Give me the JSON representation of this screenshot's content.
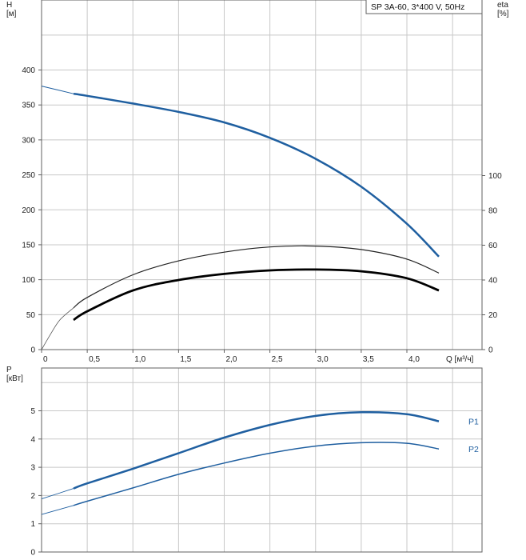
{
  "chart_data": [
    {
      "type": "line",
      "title": "SP 3A-60, 3*400 V, 50Hz",
      "xlabel": "Q [м³/ч]",
      "ylabel_left": "H\n[м]",
      "ylabel_right": "eta\n[%]",
      "xlim": [
        0,
        4.4
      ],
      "ylim_left": [
        0,
        400
      ],
      "ylim_right": [
        0,
        100
      ],
      "x_ticks": [
        "0",
        "0,5",
        "1,0",
        "1,5",
        "2,0",
        "2,5",
        "3,0",
        "3,5",
        "4,0"
      ],
      "y_ticks_left": [
        "0",
        "50",
        "100",
        "150",
        "200",
        "250",
        "300",
        "350",
        "400"
      ],
      "y_ticks_right": [
        "0",
        "20",
        "40",
        "60",
        "80",
        "100"
      ],
      "grid": true,
      "series": [
        {
          "axis": "left",
          "color": "#1f5fa0",
          "x": [
            0,
            0.35,
            0.5,
            1.0,
            1.5,
            2.0,
            2.5,
            3.0,
            3.5,
            4.0,
            4.35
          ],
          "y": [
            377,
            366,
            363,
            352,
            340,
            325,
            303,
            273,
            233,
            180,
            133
          ]
        },
        {
          "axis": "right",
          "color": "#222222",
          "x": [
            0,
            0.1,
            0.2,
            0.35,
            0.5,
            1.0,
            1.5,
            2.0,
            2.5,
            3.0,
            3.5,
            4.0,
            4.35
          ],
          "y": [
            0,
            9,
            17,
            24,
            30,
            43,
            51,
            56,
            59,
            59.5,
            57.5,
            52,
            44
          ]
        },
        {
          "axis": "right",
          "color": "#000000",
          "x": [
            0.35,
            0.5,
            1.0,
            1.5,
            2.0,
            2.5,
            3.0,
            3.5,
            4.0,
            4.35
          ],
          "y": [
            17,
            22,
            34,
            40,
            43.5,
            45.5,
            46,
            45,
            41,
            34
          ]
        }
      ]
    },
    {
      "type": "line",
      "xlim": [
        0,
        4.4
      ],
      "ylabel_left": "P\n[кВт]",
      "ylim_left": [
        0,
        6
      ],
      "y_ticks_left": [
        "0",
        "1",
        "2",
        "3",
        "4",
        "5"
      ],
      "grid": true,
      "series": [
        {
          "name": "P1",
          "color": "#1f5fa0",
          "x": [
            0,
            0.35,
            0.5,
            1.0,
            1.5,
            2.0,
            2.5,
            3.0,
            3.5,
            4.0,
            4.35
          ],
          "y": [
            1.88,
            2.25,
            2.43,
            2.95,
            3.5,
            4.05,
            4.5,
            4.82,
            4.95,
            4.88,
            4.63
          ]
        },
        {
          "name": "P2",
          "color": "#1f5fa0",
          "x": [
            0,
            0.35,
            0.5,
            1.0,
            1.5,
            2.0,
            2.5,
            3.0,
            3.5,
            4.0,
            4.35
          ],
          "y": [
            1.33,
            1.65,
            1.8,
            2.27,
            2.75,
            3.15,
            3.5,
            3.75,
            3.87,
            3.85,
            3.65
          ]
        }
      ]
    }
  ]
}
